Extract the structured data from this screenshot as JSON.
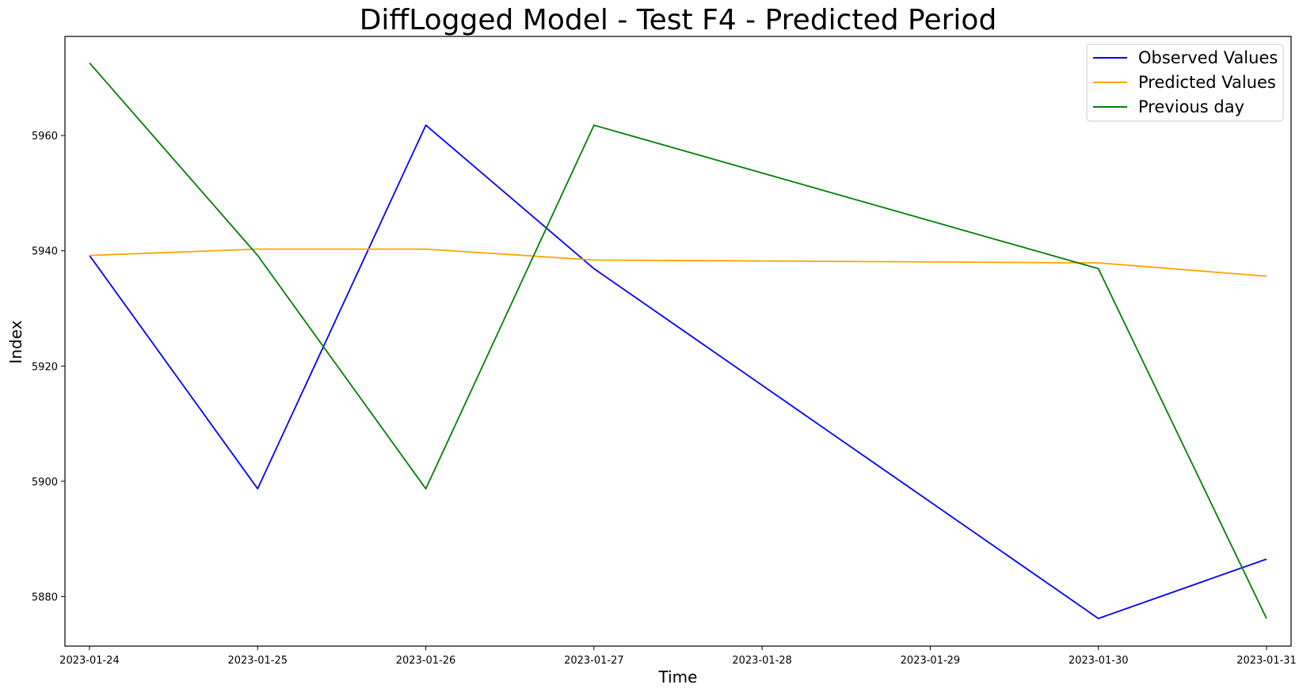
{
  "chart_data": {
    "type": "line",
    "title": "DiffLogged Model - Test F4 - Predicted Period",
    "xlabel": "Time",
    "ylabel": "Index",
    "x": [
      "2023-01-24",
      "2023-01-25",
      "2023-01-26",
      "2023-01-27",
      "2023-01-30",
      "2023-01-31"
    ],
    "x_ticks": [
      "2023-01-24",
      "2023-01-25",
      "2023-01-26",
      "2023-01-27",
      "2023-01-28",
      "2023-01-29",
      "2023-01-30",
      "2023-01-31"
    ],
    "y_ticks": [
      5880,
      5900,
      5920,
      5940,
      5960
    ],
    "xlim": [
      "2023-01-23T20:30",
      "2023-01-31T03:30"
    ],
    "ylim": [
      5871.4,
      5977.2
    ],
    "grid": false,
    "legend_position": "top-right",
    "series": [
      {
        "name": "Observed Values",
        "color": "#0000ff",
        "values": [
          5939.2,
          5898.7,
          5961.8,
          5936.9,
          5876.2,
          5886.5
        ]
      },
      {
        "name": "Predicted Values",
        "color": "#ffa500",
        "values": [
          5939.2,
          5940.3,
          5940.3,
          5938.4,
          5937.9,
          5935.6
        ]
      },
      {
        "name": "Previous day",
        "color": "#008000",
        "values": [
          5972.6,
          5939.2,
          5898.7,
          5961.8,
          5936.9,
          5876.2
        ]
      }
    ]
  }
}
